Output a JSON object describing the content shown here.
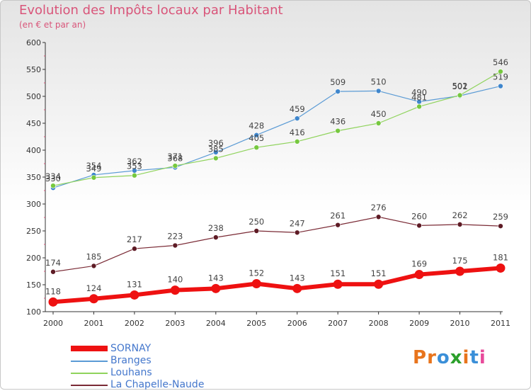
{
  "header": {
    "title": "Evolution des Impôts locaux par Habitant",
    "subtitle": "(en € et par an)"
  },
  "brand": {
    "text": "Proxiti",
    "letters": [
      {
        "ch": "P",
        "color": "#e8741c"
      },
      {
        "ch": "r",
        "color": "#e8741c"
      },
      {
        "ch": "o",
        "color": "#3a8fd8"
      },
      {
        "ch": "x",
        "color": "#2ca02c"
      },
      {
        "ch": "i",
        "color": "#e8741c"
      },
      {
        "ch": "t",
        "color": "#3a8fd8"
      },
      {
        "ch": "i",
        "color": "#e84a9a"
      }
    ]
  },
  "chart_data": {
    "type": "line",
    "x": [
      "2000",
      "2001",
      "2002",
      "2003",
      "2004",
      "2005",
      "2006",
      "2007",
      "2008",
      "2009",
      "2010",
      "2011"
    ],
    "ylim": [
      100,
      600
    ],
    "yticks": [
      "100",
      "150",
      "200",
      "250",
      "300",
      "350",
      "400",
      "450",
      "500",
      "550",
      "600"
    ],
    "grid": false,
    "legend_position": "bottom-left",
    "series": [
      {
        "name": "Branges",
        "color": "#5b9bd5",
        "point_color": "#3f86cc",
        "width": 1.2,
        "radius": 3.5,
        "values": [
          330,
          354,
          362,
          368,
          396,
          428,
          459,
          509,
          510,
          490,
          501,
          519
        ],
        "labels": [
          "330",
          "354",
          "362",
          "368",
          "396",
          "428",
          "459",
          "509",
          "510",
          "490",
          "501",
          "519"
        ]
      },
      {
        "name": "Louhans",
        "color": "#8fd35c",
        "point_color": "#76c83f",
        "width": 1.2,
        "radius": 3.5,
        "values": [
          334,
          349,
          353,
          371,
          385,
          405,
          416,
          436,
          450,
          481,
          502,
          546
        ],
        "labels": [
          "334",
          "349",
          "353",
          "371",
          "385",
          "405",
          "416",
          "436",
          "450",
          "481",
          "502",
          "546"
        ]
      },
      {
        "name": "La Chapelle-Naude",
        "color": "#7a2a35",
        "point_color": "#5e1b25",
        "width": 1.2,
        "radius": 3.5,
        "values": [
          174,
          185,
          217,
          223,
          238,
          250,
          247,
          261,
          276,
          260,
          262,
          259
        ],
        "labels": [
          "174",
          "185",
          "217",
          "223",
          "238",
          "250",
          "247",
          "261",
          "276",
          "260",
          "262",
          "259"
        ]
      },
      {
        "name": "SORNAY",
        "color": "#ee1111",
        "point_color": "#ee1111",
        "width": 6,
        "radius": 6.5,
        "values": [
          118,
          124,
          131,
          140,
          143,
          152,
          143,
          151,
          151,
          169,
          175,
          181
        ],
        "labels": [
          "118",
          "124",
          "131",
          "140",
          "143",
          "152",
          "143",
          "151",
          "151",
          "169",
          "175",
          "181"
        ]
      }
    ]
  },
  "legend": [
    {
      "label": "SORNAY",
      "color": "#ee1111"
    },
    {
      "label": "Branges",
      "color": "#5b9bd5"
    },
    {
      "label": "Louhans",
      "color": "#8fd35c"
    },
    {
      "label": "La Chapelle-Naude",
      "color": "#7a2a35"
    }
  ]
}
